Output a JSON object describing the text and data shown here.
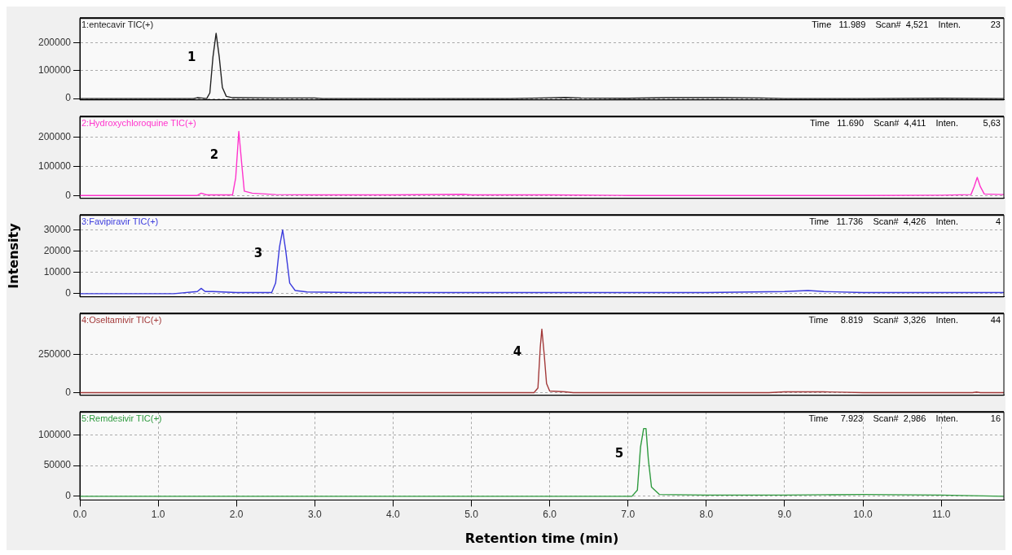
{
  "chart_data": [
    {
      "type": "line",
      "title": "1:entecavir TIC(+)",
      "subtitle": "Time   11.989    Scan#  4,521    Inten.            23",
      "tick_labels": "y",
      "grid": true,
      "xlim": [
        0,
        11.8
      ],
      "ylim": [
        -5000,
        290000
      ],
      "yticks": [
        0,
        100000,
        200000
      ],
      "x": [
        0,
        1.45,
        1.5,
        1.55,
        1.62,
        1.66,
        1.7,
        1.74,
        1.78,
        1.82,
        1.87,
        1.95,
        2.5,
        3.0,
        3.1,
        3.5,
        4.5,
        5.5,
        5.9,
        6.2,
        6.4,
        7.0,
        7.5,
        8.2,
        8.7,
        9.0,
        10.0,
        11.0,
        11.8
      ],
      "series": [
        {
          "color": "#222222",
          "values": [
            0,
            0,
            3000,
            2000,
            0,
            20000,
            150000,
            235000,
            150000,
            40000,
            8000,
            3000,
            2000,
            2000,
            0,
            0,
            0,
            0,
            2000,
            4000,
            2000,
            1000,
            3000,
            3000,
            2000,
            0,
            0,
            1000,
            0
          ]
        }
      ],
      "annotations": [
        "1"
      ]
    },
    {
      "type": "line",
      "title": "2:Hydroxychloroquine TIC(+)",
      "subtitle": "Time   11.690    Scan#  4,411    Inten.          5,63",
      "tick_labels": "y",
      "grid": true,
      "xlim": [
        0,
        11.8
      ],
      "ylim": [
        -10000,
        270000
      ],
      "yticks": [
        0,
        100000,
        200000
      ],
      "x": [
        0,
        1.5,
        1.55,
        1.62,
        1.95,
        1.99,
        2.03,
        2.07,
        2.1,
        2.2,
        2.5,
        3.0,
        4.0,
        4.9,
        5.0,
        6.0,
        7.0,
        8.0,
        9.0,
        10.0,
        11.0,
        11.38,
        11.42,
        11.46,
        11.5,
        11.55,
        11.8
      ],
      "series": [
        {
          "color": "#ff33cc",
          "values": [
            0,
            0,
            8000,
            2000,
            2000,
            60000,
            219000,
            100000,
            15000,
            8000,
            3000,
            2000,
            2000,
            4000,
            2000,
            2000,
            0,
            0,
            0,
            0,
            1000,
            3000,
            30000,
            62000,
            30000,
            5000,
            3000
          ]
        }
      ],
      "annotations": [
        "2"
      ]
    },
    {
      "type": "line",
      "title": "3:Favipiravir TIC(+)",
      "subtitle": "Time   11.736    Scan#  4,426    Inten.               4",
      "ylabel": "Intensity",
      "tick_labels": "y",
      "grid": true,
      "xlim": [
        0,
        11.8
      ],
      "ylim": [
        -1500,
        37000
      ],
      "yticks": [
        0,
        10000,
        20000,
        30000
      ],
      "x": [
        0,
        1.2,
        1.5,
        1.55,
        1.6,
        1.7,
        2.0,
        2.45,
        2.5,
        2.55,
        2.59,
        2.63,
        2.68,
        2.75,
        2.9,
        3.5,
        5.0,
        8.0,
        9.0,
        9.3,
        9.5,
        10.0,
        11.8
      ],
      "series": [
        {
          "color": "#3b3bdd",
          "values": [
            0,
            0,
            1000,
            2500,
            1000,
            1000,
            500,
            500,
            5000,
            22000,
            30000,
            20000,
            5000,
            1500,
            800,
            500,
            500,
            500,
            1000,
            1500,
            1000,
            500,
            500
          ]
        }
      ],
      "annotations": [
        "3"
      ]
    },
    {
      "type": "line",
      "title": "4:Oseltamivir TIC(+)",
      "subtitle": "Time     8.819    Scan#  3,326    Inten.             44",
      "tick_labels": "y",
      "grid": true,
      "xlim": [
        0,
        11.8
      ],
      "ylim": [
        -18000,
        520000
      ],
      "yticks": [
        0,
        250000
      ],
      "x": [
        0,
        5.8,
        5.85,
        5.88,
        5.9,
        5.93,
        5.96,
        6.0,
        6.2,
        6.3,
        8.8,
        9.0,
        9.5,
        9.7,
        10.0,
        11.4,
        11.45,
        11.5,
        11.8
      ],
      "series": [
        {
          "color": "#a33a3a",
          "values": [
            0,
            0,
            30000,
            300000,
            417000,
            250000,
            60000,
            10000,
            5000,
            0,
            0,
            5000,
            5000,
            3000,
            0,
            0,
            4000,
            0,
            0
          ]
        }
      ],
      "annotations": [
        "4"
      ]
    },
    {
      "type": "line",
      "title": "5:Remdesivir TIC(+)",
      "subtitle": "Time     7.923    Scan#  2,986    Inten.             16",
      "xlabel": "Retention time (min)",
      "grid": true,
      "xlim": [
        0,
        11.8
      ],
      "ylim": [
        -6000,
        137000
      ],
      "yticks": [
        0,
        50000,
        100000
      ],
      "xticks": [
        {
          "value": 0,
          "label": "0.0"
        },
        {
          "value": 1,
          "label": "1.0"
        },
        {
          "value": 2,
          "label": "2.0"
        },
        {
          "value": 3,
          "label": "3.0"
        },
        {
          "value": 4,
          "label": "4.0"
        },
        {
          "value": 5,
          "label": "5.0"
        },
        {
          "value": 6,
          "label": "6.0"
        },
        {
          "value": 7,
          "label": "7.0"
        },
        {
          "value": 8,
          "label": "8.0"
        },
        {
          "value": 9,
          "label": "9.0"
        },
        {
          "value": 10,
          "label": "10.0"
        },
        {
          "value": 11,
          "label": "11.0"
        }
      ],
      "x": [
        0,
        7.05,
        7.12,
        7.16,
        7.2,
        7.23,
        7.26,
        7.3,
        7.4,
        8.0,
        9.0,
        10.0,
        11.0,
        11.8
      ],
      "series": [
        {
          "color": "#2e9a3e",
          "values": [
            0,
            0,
            10000,
            80000,
            110000,
            110000,
            60000,
            15000,
            3000,
            2000,
            2000,
            3000,
            2000,
            0
          ]
        }
      ],
      "annotations": [
        "5"
      ]
    }
  ]
}
